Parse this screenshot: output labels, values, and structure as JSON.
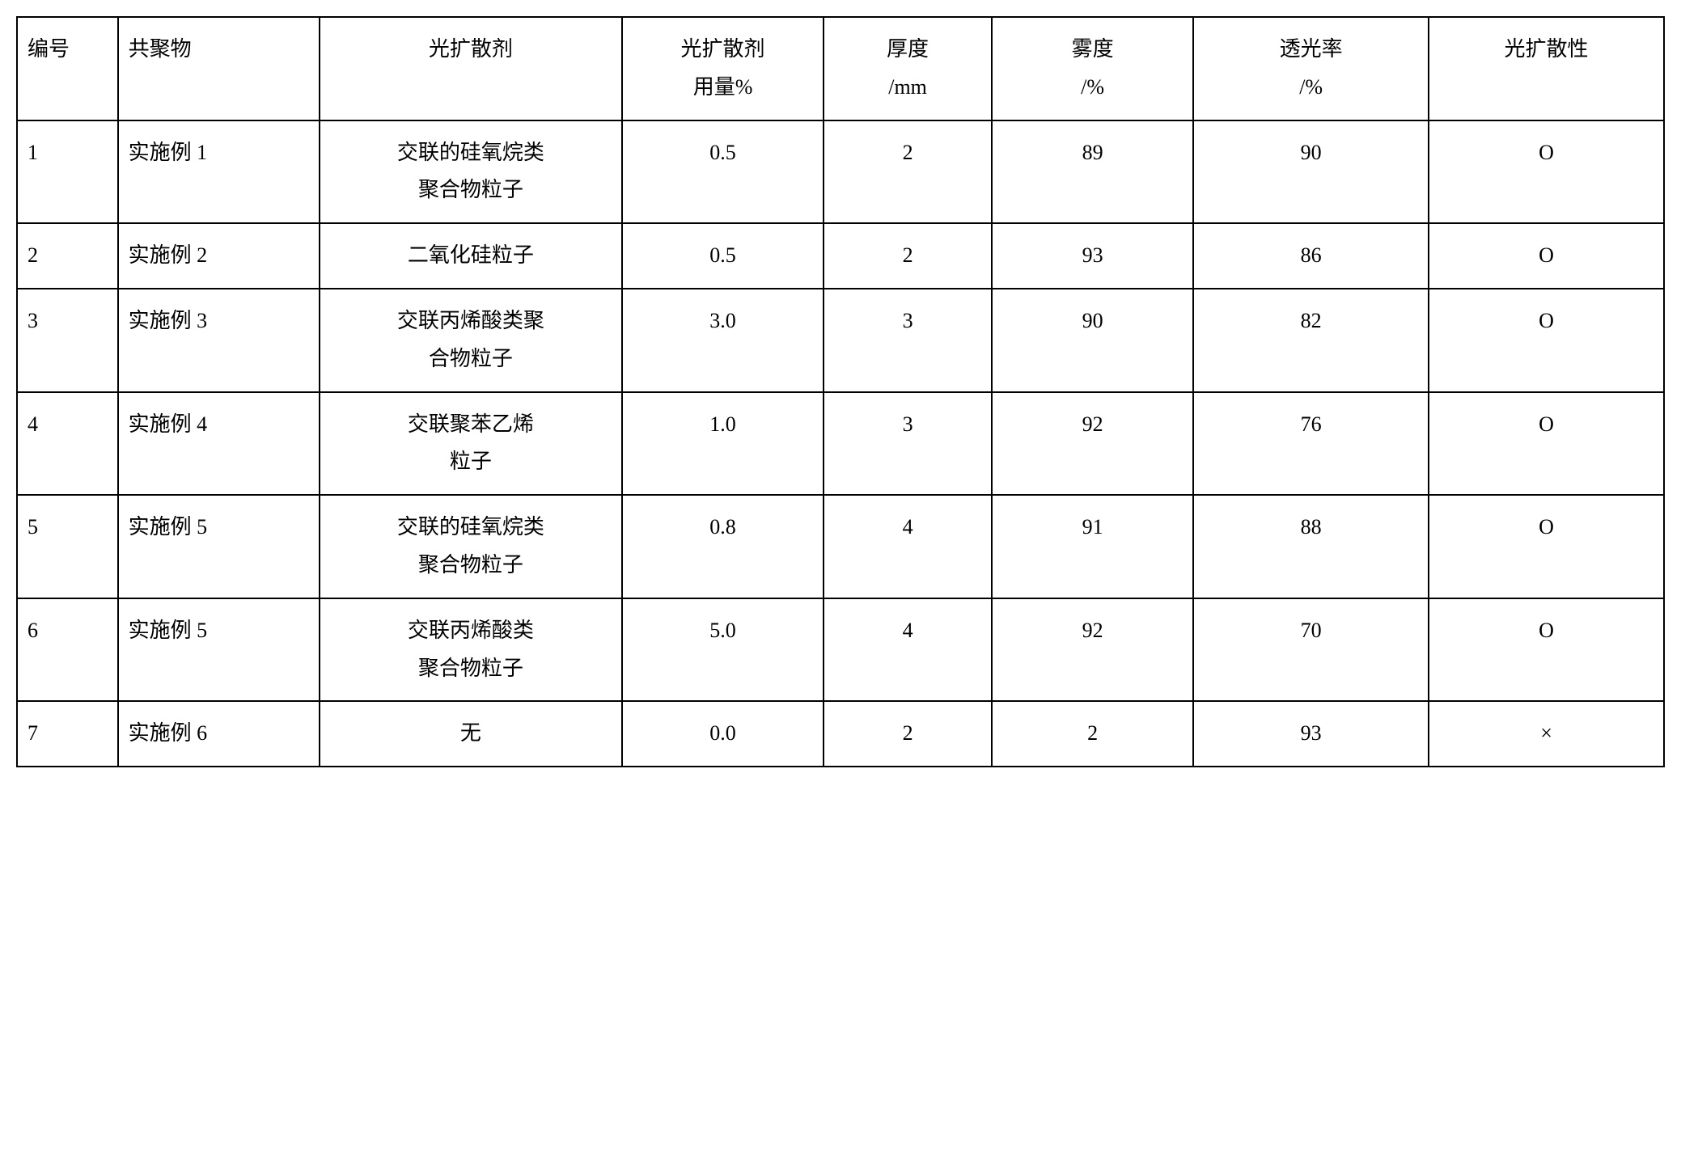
{
  "table": {
    "headers": {
      "id": "编号",
      "copolymer": "共聚物",
      "diffusing_agent": "光扩散剂",
      "diffusing_amount_line1": "光扩散剂",
      "diffusing_amount_line2": "用量%",
      "thickness_line1": "厚度",
      "thickness_line2": "/mm",
      "haze_line1": "雾度",
      "haze_line2": "/%",
      "transmittance_line1": "透光率",
      "transmittance_line2": "/%",
      "diffusivity": "光扩散性"
    },
    "rows": [
      {
        "id": "1",
        "copolymer": "实施例 1",
        "diffusing_agent_line1": "交联的硅氧烷类",
        "diffusing_agent_line2": "聚合物粒子",
        "diffusing_amount": "0.5",
        "thickness": "2",
        "haze": "89",
        "transmittance": "90",
        "diffusivity": "O"
      },
      {
        "id": "2",
        "copolymer": "实施例 2",
        "diffusing_agent_line1": "二氧化硅粒子",
        "diffusing_agent_line2": "",
        "diffusing_amount": "0.5",
        "thickness": "2",
        "haze": "93",
        "transmittance": "86",
        "diffusivity": "O"
      },
      {
        "id": "3",
        "copolymer": "实施例 3",
        "diffusing_agent_line1": "交联丙烯酸类聚",
        "diffusing_agent_line2": "合物粒子",
        "diffusing_amount": "3.0",
        "thickness": "3",
        "haze": "90",
        "transmittance": "82",
        "diffusivity": "O"
      },
      {
        "id": "4",
        "copolymer": "实施例 4",
        "diffusing_agent_line1": "交联聚苯乙烯",
        "diffusing_agent_line2": "粒子",
        "diffusing_amount": "1.0",
        "thickness": "3",
        "haze": "92",
        "transmittance": "76",
        "diffusivity": "O"
      },
      {
        "id": "5",
        "copolymer": "实施例 5",
        "diffusing_agent_line1": "交联的硅氧烷类",
        "diffusing_agent_line2": "聚合物粒子",
        "diffusing_amount": "0.8",
        "thickness": "4",
        "haze": "91",
        "transmittance": "88",
        "diffusivity": "O"
      },
      {
        "id": "6",
        "copolymer": "实施例 5",
        "diffusing_agent_line1": "交联丙烯酸类",
        "diffusing_agent_line2": "聚合物粒子",
        "diffusing_amount": "5.0",
        "thickness": "4",
        "haze": "92",
        "transmittance": "70",
        "diffusivity": "O"
      },
      {
        "id": "7",
        "copolymer": "实施例 6",
        "diffusing_agent_line1": "无",
        "diffusing_agent_line2": "",
        "diffusing_amount": "0.0",
        "thickness": "2",
        "haze": "2",
        "transmittance": "93",
        "diffusivity": "×"
      }
    ],
    "styling": {
      "border_color": "#000000",
      "border_width": 2,
      "background_color": "#ffffff",
      "text_color": "#000000",
      "font_size": 26,
      "font_family": "SimSun",
      "cell_padding": 16,
      "line_height": 1.8,
      "column_widths": {
        "id": "6%",
        "copolymer": "12%",
        "diffusing_agent": "18%",
        "diffusing_amount": "12%",
        "thickness": "10%",
        "haze": "12%",
        "transmittance": "14%",
        "diffusivity": "14%"
      },
      "column_alignments": {
        "id": "left",
        "copolymer": "left",
        "diffusing_agent": "center",
        "diffusing_amount": "center",
        "thickness": "center",
        "haze": "center",
        "transmittance": "center",
        "diffusivity": "center"
      }
    }
  }
}
